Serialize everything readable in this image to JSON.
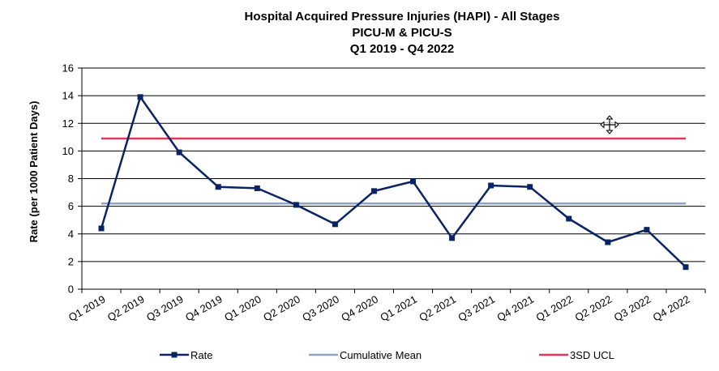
{
  "chart_data": {
    "type": "line",
    "title": [
      "Hospital Acquired Pressure Injuries (HAPI) - All Stages",
      "PICU-M & PICU-S",
      "Q1 2019 - Q4 2022"
    ],
    "xlabel": "",
    "ylabel": "Rate (per 1000 Patient Days)",
    "ylim": [
      0,
      16
    ],
    "yticks": [
      0,
      2,
      4,
      6,
      8,
      10,
      12,
      14,
      16
    ],
    "grid": true,
    "legend_position": "bottom",
    "categories": [
      "Q1 2019",
      "Q2 2019",
      "Q3 2019",
      "Q4 2019",
      "Q1 2020",
      "Q2 2020",
      "Q3 2020",
      "Q4 2020",
      "Q1 2021",
      "Q2 2021",
      "Q3 2021",
      "Q4 2021",
      "Q1 2022",
      "Q2 2022",
      "Q3 2022",
      "Q4 2022"
    ],
    "series": [
      {
        "name": "Rate",
        "color": "#0a2463",
        "marker": "square",
        "values": [
          4.4,
          13.9,
          9.9,
          7.4,
          7.3,
          6.1,
          4.7,
          7.1,
          7.8,
          3.7,
          7.5,
          7.4,
          5.1,
          3.4,
          4.3,
          1.6
        ]
      },
      {
        "name": "Cumulative Mean",
        "color": "#8fa3c4",
        "marker": "none",
        "values": [
          6.2,
          6.2,
          6.2,
          6.2,
          6.2,
          6.2,
          6.2,
          6.2,
          6.2,
          6.2,
          6.2,
          6.2,
          6.2,
          6.2,
          6.2,
          6.2
        ]
      },
      {
        "name": "3SD UCL",
        "color": "#e8365a",
        "marker": "none",
        "values": [
          10.9,
          10.9,
          10.9,
          10.9,
          10.9,
          10.9,
          10.9,
          10.9,
          10.9,
          10.9,
          10.9,
          10.9,
          10.9,
          10.9,
          10.9,
          10.9
        ]
      }
    ]
  },
  "icons": {
    "cursor": "move-cursor-icon"
  }
}
